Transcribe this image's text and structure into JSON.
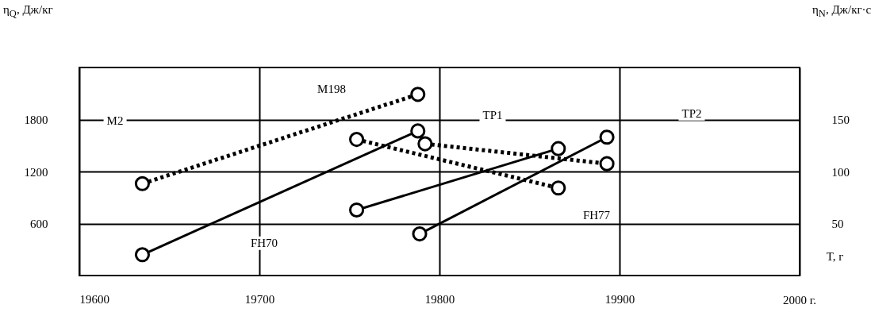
{
  "chart_data": {
    "type": "line",
    "ylabel": "η$_{Q}$, Дж/кг",
    "y2label": "η$_{N}$, Дж/кг·с",
    "xlabel": "T, г",
    "series": [
      {
        "color": "#000000",
        "axis": "y",
        "line_style": "dotted",
        "x": [
          19635,
          19788
        ],
        "values": [
          1060,
          2090
        ]
      },
      {
        "color": "#000000",
        "axis": "y",
        "line_style": "dotted",
        "x": [
          19754,
          19866
        ],
        "values": [
          1570,
          1010
        ]
      },
      {
        "color": "#000000",
        "axis": "y",
        "line_style": "dotted",
        "x": [
          19792,
          19893
        ],
        "values": [
          1520,
          1290
        ]
      },
      {
        "color": "#000000",
        "axis": "y2",
        "line_style": "solid",
        "x": [
          19635,
          19788
        ],
        "values": [
          20,
          139
        ]
      },
      {
        "color": "#000000",
        "axis": "y2",
        "line_style": "solid",
        "x": [
          19754,
          19866
        ],
        "values": [
          63,
          122
        ]
      },
      {
        "color": "#000000",
        "axis": "y2",
        "line_style": "solid",
        "x": [
          19789,
          19893
        ],
        "values": [
          40,
          133
        ]
      }
    ],
    "marker": "circle",
    "xlim": [
      19600,
      20000
    ],
    "xticks": [
      19600,
      19700,
      19800,
      19900,
      {
        "value": 20000,
        "label": null
      }
    ],
    "ylim": [
      0,
      2400
    ],
    "yticks": [
      600,
      1200,
      1800
    ],
    "y2lim": [
      0,
      200
    ],
    "y2ticks": [
      50,
      100,
      150
    ],
    "grid": true,
    "annotations": [
      "M2",
      "M198",
      "TP1",
      "TP2",
      "FH70",
      "FH77",
      "2000 г."
    ]
  }
}
